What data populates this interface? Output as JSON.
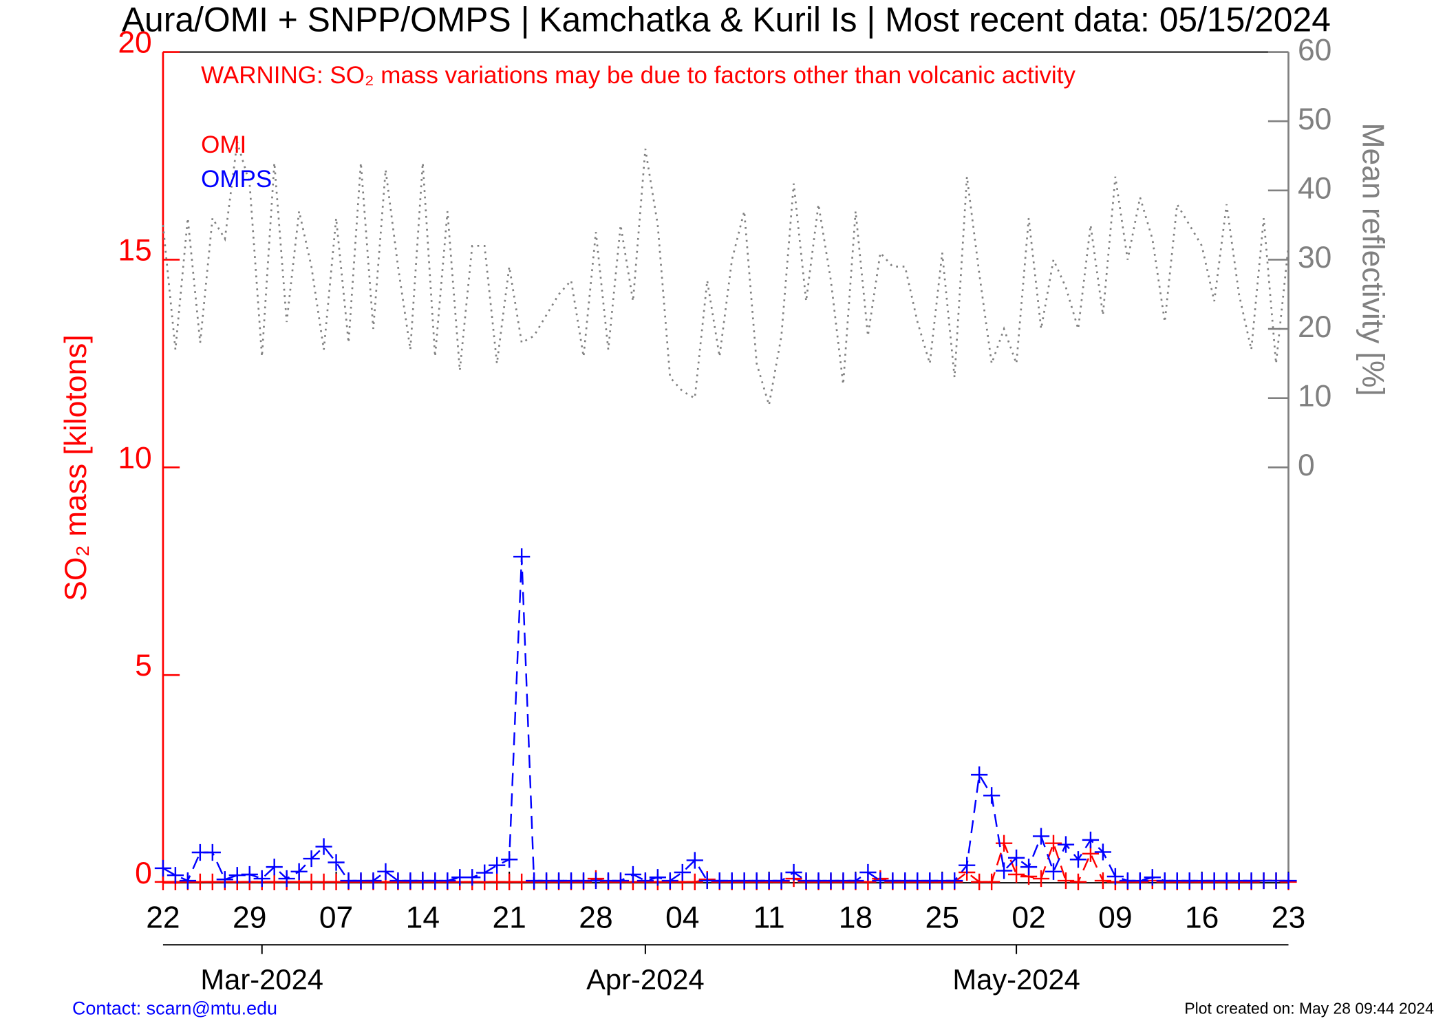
{
  "chart_data": {
    "type": "line",
    "title": "Aura/OMI + SNPP/OMPS | Kamchatka & Kuril Is | Most recent data: 05/15/2024",
    "annotation": "WARNING: SO₂ mass variations may be due to factors other than volcanic activity",
    "ylabel": "SO₂ mass [kilotons]",
    "y2label": "Mean reflectivity [%]",
    "footer_left": "Contact: scarn@mtu.edu",
    "footer_right": "Plot created on: May 28 09:44 2024",
    "legend": "top left",
    "x": [
      "2024-02-22",
      "2024-02-23",
      "2024-02-24",
      "2024-02-25",
      "2024-02-26",
      "2024-02-27",
      "2024-02-28",
      "2024-02-29",
      "2024-03-01",
      "2024-03-02",
      "2024-03-03",
      "2024-03-04",
      "2024-03-05",
      "2024-03-06",
      "2024-03-07",
      "2024-03-08",
      "2024-03-09",
      "2024-03-10",
      "2024-03-11",
      "2024-03-12",
      "2024-03-13",
      "2024-03-14",
      "2024-03-15",
      "2024-03-16",
      "2024-03-17",
      "2024-03-18",
      "2024-03-19",
      "2024-03-20",
      "2024-03-21",
      "2024-03-22",
      "2024-03-23",
      "2024-03-24",
      "2024-03-25",
      "2024-03-26",
      "2024-03-27",
      "2024-03-28",
      "2024-03-29",
      "2024-03-30",
      "2024-03-31",
      "2024-04-01",
      "2024-04-02",
      "2024-04-03",
      "2024-04-04",
      "2024-04-05",
      "2024-04-06",
      "2024-04-07",
      "2024-04-08",
      "2024-04-09",
      "2024-04-10",
      "2024-04-11",
      "2024-04-12",
      "2024-04-13",
      "2024-04-14",
      "2024-04-15",
      "2024-04-16",
      "2024-04-17",
      "2024-04-18",
      "2024-04-19",
      "2024-04-20",
      "2024-04-21",
      "2024-04-22",
      "2024-04-23",
      "2024-04-24",
      "2024-04-25",
      "2024-04-26",
      "2024-04-27",
      "2024-04-28",
      "2024-04-29",
      "2024-04-30",
      "2024-05-01",
      "2024-05-02",
      "2024-05-03",
      "2024-05-04",
      "2024-05-05",
      "2024-05-06",
      "2024-05-07",
      "2024-05-08",
      "2024-05-09",
      "2024-05-10",
      "2024-05-11",
      "2024-05-12",
      "2024-05-13",
      "2024-05-14",
      "2024-05-15",
      "2024-05-16",
      "2024-05-17",
      "2024-05-18",
      "2024-05-19",
      "2024-05-20",
      "2024-05-21",
      "2024-05-22",
      "2024-05-23"
    ],
    "series": [
      {
        "name": "OMI",
        "color": "#ff0000",
        "line_style": "dashed",
        "marker": "+",
        "values": [
          0.02,
          0.02,
          0.02,
          0.02,
          0.02,
          0.02,
          0.02,
          0.02,
          0.02,
          0.02,
          0.02,
          0.02,
          0.02,
          0.02,
          0.02,
          0.02,
          0.02,
          0.02,
          0.02,
          0.02,
          0.02,
          0.02,
          0.02,
          0.02,
          0.02,
          0.02,
          0.02,
          0.02,
          0.02,
          0.02,
          0.02,
          0.02,
          0.02,
          0.02,
          0.02,
          0.1,
          0.02,
          0.02,
          0.02,
          0.02,
          0.02,
          0.02,
          0.02,
          0.02,
          0.08,
          0.02,
          0.02,
          0.02,
          0.02,
          0.02,
          0.02,
          0.1,
          0.02,
          0.02,
          0.02,
          0.02,
          0.02,
          0.02,
          0.1,
          0.02,
          0.02,
          0.02,
          0.02,
          0.02,
          0.02,
          0.25,
          0.02,
          0.02,
          0.95,
          0.2,
          0.15,
          0.1,
          0.95,
          0.05,
          0.02,
          0.7,
          0.05,
          0.02,
          0.02,
          0.02,
          0.05,
          0.02,
          0.02,
          0.02,
          0.02,
          0.02,
          0.02,
          0.02,
          0.02,
          0.05,
          0.05,
          0.02
        ]
      },
      {
        "name": "OMPS",
        "color": "#0000ff",
        "line_style": "dashed",
        "marker": "+",
        "values": [
          0.35,
          0.18,
          0.05,
          0.73,
          0.73,
          0.08,
          0.18,
          0.2,
          0.1,
          0.38,
          0.1,
          0.27,
          0.58,
          0.87,
          0.49,
          0.05,
          0.05,
          0.05,
          0.27,
          0.05,
          0.05,
          0.05,
          0.05,
          0.05,
          0.13,
          0.13,
          0.24,
          0.42,
          0.56,
          7.85,
          0.05,
          0.05,
          0.05,
          0.05,
          0.05,
          0.05,
          0.05,
          0.05,
          0.2,
          0.05,
          0.13,
          0.05,
          0.25,
          0.54,
          0.05,
          0.05,
          0.05,
          0.05,
          0.05,
          0.05,
          0.05,
          0.25,
          0.05,
          0.05,
          0.05,
          0.05,
          0.05,
          0.25,
          0.05,
          0.05,
          0.05,
          0.05,
          0.05,
          0.05,
          0.05,
          0.42,
          2.6,
          2.1,
          0.29,
          0.6,
          0.38,
          1.12,
          0.27,
          0.92,
          0.56,
          1.03,
          0.74,
          0.15,
          0.05,
          0.05,
          0.13,
          0.05,
          0.05,
          0.05,
          0.05,
          0.05,
          0.05,
          0.05,
          0.05,
          0.05,
          0.05,
          0.05
        ]
      },
      {
        "color": "#808080",
        "line_style": "dotted",
        "axis": "y2",
        "values": [
          35,
          17,
          36,
          18,
          36,
          33,
          47,
          41,
          16,
          44,
          21,
          37,
          29,
          17,
          36,
          18,
          44,
          20,
          43,
          29,
          17,
          44,
          16,
          37,
          14,
          32,
          32,
          15,
          29,
          18,
          19,
          22,
          25,
          27,
          16,
          34,
          17,
          35,
          24,
          46,
          35,
          13,
          11,
          10,
          27,
          16,
          30,
          37,
          15,
          9,
          19,
          41,
          24,
          38,
          27,
          12,
          37,
          19,
          31,
          29,
          29,
          21,
          15,
          31,
          13,
          42,
          28,
          15,
          20,
          15,
          36,
          20,
          30,
          26,
          20,
          35,
          22,
          42,
          30,
          39,
          33,
          21,
          38,
          35,
          32,
          24,
          38,
          25,
          17,
          36,
          15,
          32
        ]
      }
    ],
    "xlim": [
      "2024-02-22",
      "2024-05-23"
    ],
    "xticks": [
      {
        "value": "2024-02-22",
        "label": "22"
      },
      {
        "value": "2024-02-29",
        "label": "29"
      },
      {
        "value": "2024-03-07",
        "label": "07"
      },
      {
        "value": "2024-03-14",
        "label": "14"
      },
      {
        "value": "2024-03-21",
        "label": "21"
      },
      {
        "value": "2024-03-28",
        "label": "28"
      },
      {
        "value": "2024-04-04",
        "label": "04"
      },
      {
        "value": "2024-04-11",
        "label": "11"
      },
      {
        "value": "2024-04-18",
        "label": "18"
      },
      {
        "value": "2024-04-25",
        "label": "25"
      },
      {
        "value": "2024-05-02",
        "label": "02"
      },
      {
        "value": "2024-05-09",
        "label": "09"
      },
      {
        "value": "2024-05-16",
        "label": "16"
      },
      {
        "value": "2024-05-23",
        "label": "23"
      }
    ],
    "month_ticks": [
      {
        "value": "2024-03-01",
        "label": "Mar-2024"
      },
      {
        "value": "2024-04-01",
        "label": "Apr-2024"
      },
      {
        "value": "2024-05-01",
        "label": "May-2024"
      }
    ],
    "ylim": [
      0,
      20
    ],
    "yticks": [
      0,
      5,
      10,
      15,
      20
    ],
    "y2lim": [
      -60,
      60
    ],
    "y2ticks": [
      0,
      10,
      20,
      30,
      40,
      50,
      60
    ]
  }
}
